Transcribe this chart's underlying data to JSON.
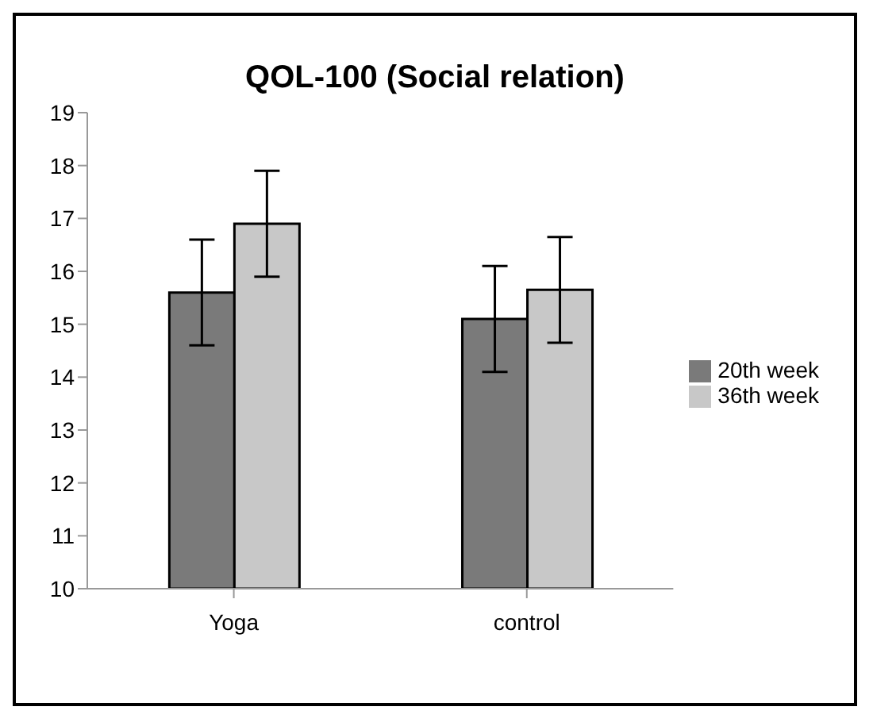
{
  "chart_data": {
    "type": "bar",
    "title": "QOL-100 (Social relation)",
    "categories": [
      "Yoga",
      "control"
    ],
    "series": [
      {
        "name": "20th week",
        "color": "#7a7a7a",
        "values": [
          15.6,
          15.1
        ],
        "errors": [
          1.0,
          1.0
        ]
      },
      {
        "name": "36th week",
        "color": "#c8c8c8",
        "values": [
          16.9,
          15.65
        ],
        "errors": [
          1.0,
          1.0
        ]
      }
    ],
    "ylim": [
      10,
      19
    ],
    "yticks": [
      10,
      11,
      12,
      13,
      14,
      15,
      16,
      17,
      18,
      19
    ],
    "grid": false,
    "legend": "right"
  }
}
